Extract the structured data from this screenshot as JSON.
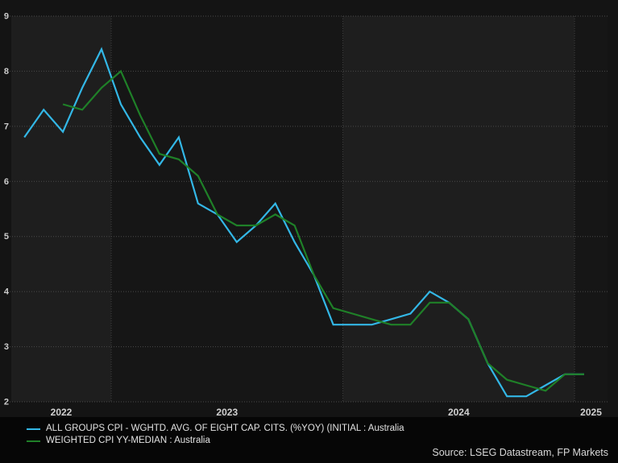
{
  "chart_data": {
    "type": "line",
    "title": "",
    "x_start": "2022-08",
    "x_end": "2025-01",
    "x_tick_labels": [
      "2022",
      "2023",
      "2024",
      "2025"
    ],
    "y_ticks": [
      9,
      8,
      7,
      6,
      5,
      4,
      3,
      2
    ],
    "ylim": [
      2,
      9
    ],
    "grid": "dotted",
    "legend_position": "bottom-left",
    "series": [
      {
        "name": "ALL GROUPS CPI - WGHTD. AVG. OF EIGHT CAP. CITS. (%YOY) (INITIAL : Australia",
        "color": "#33b7e6",
        "start_month": "2022-08",
        "values": [
          6.8,
          7.3,
          6.9,
          7.7,
          8.4,
          7.4,
          6.8,
          6.3,
          6.8,
          5.6,
          5.4,
          4.9,
          5.2,
          5.6,
          4.9,
          4.3,
          3.4,
          3.4,
          3.4,
          3.5,
          3.6,
          4.0,
          3.8,
          3.5,
          2.7,
          2.1,
          2.1,
          2.3,
          2.5,
          2.5
        ]
      },
      {
        "name": "WEIGHTED CPI YY-MEDIAN : Australia",
        "color": "#1f8028",
        "start_month": "2022-10",
        "values": [
          7.4,
          7.3,
          7.7,
          8.0,
          7.2,
          6.5,
          6.4,
          6.1,
          5.4,
          5.2,
          5.2,
          5.4,
          5.2,
          4.3,
          3.7,
          3.6,
          3.5,
          3.4,
          3.4,
          3.8,
          3.8,
          3.5,
          2.7,
          2.4,
          2.3,
          2.2,
          2.5,
          2.5
        ]
      }
    ],
    "source_note": "Source: LSEG Datastream, FP Markets",
    "colors": {
      "page_bg": "#141414",
      "band_light": "#1e1e1e",
      "band_dark": "#161616",
      "legend_bg": "#060606",
      "grid_horizontal": "#4a4a4a",
      "grid_vertical": "#404040",
      "tick_text": "#cccccc",
      "year_text": "#d0d0d0"
    }
  }
}
